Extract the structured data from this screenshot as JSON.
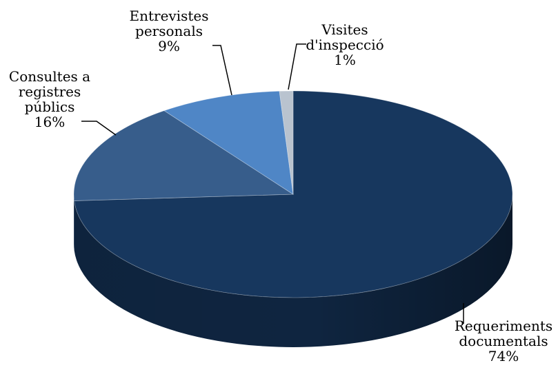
{
  "chart_data": {
    "type": "pie",
    "style": "3d",
    "categories": [
      "Requeriments documentals",
      "Consultes a registres públics",
      "Entrevistes personals",
      "Visites d'inspecció"
    ],
    "values": [
      74,
      16,
      9,
      1
    ],
    "colors": [
      "#17375e",
      "#375d8b",
      "#4f86c6",
      "#b9c3cf"
    ],
    "side_colors": [
      "#0f2540",
      "#243f60",
      "#365f94",
      "#8a96a6"
    ],
    "labels": [
      {
        "lines": [
          "Requeriments",
          "documentals"
        ],
        "value": "74%"
      },
      {
        "lines": [
          "Consultes a",
          "registres",
          "públics"
        ],
        "value": "16%"
      },
      {
        "lines": [
          "Entrevistes",
          "personals"
        ],
        "value": "9%"
      },
      {
        "lines": [
          "Visites",
          "d'inspecció"
        ],
        "value": "1%"
      }
    ]
  }
}
